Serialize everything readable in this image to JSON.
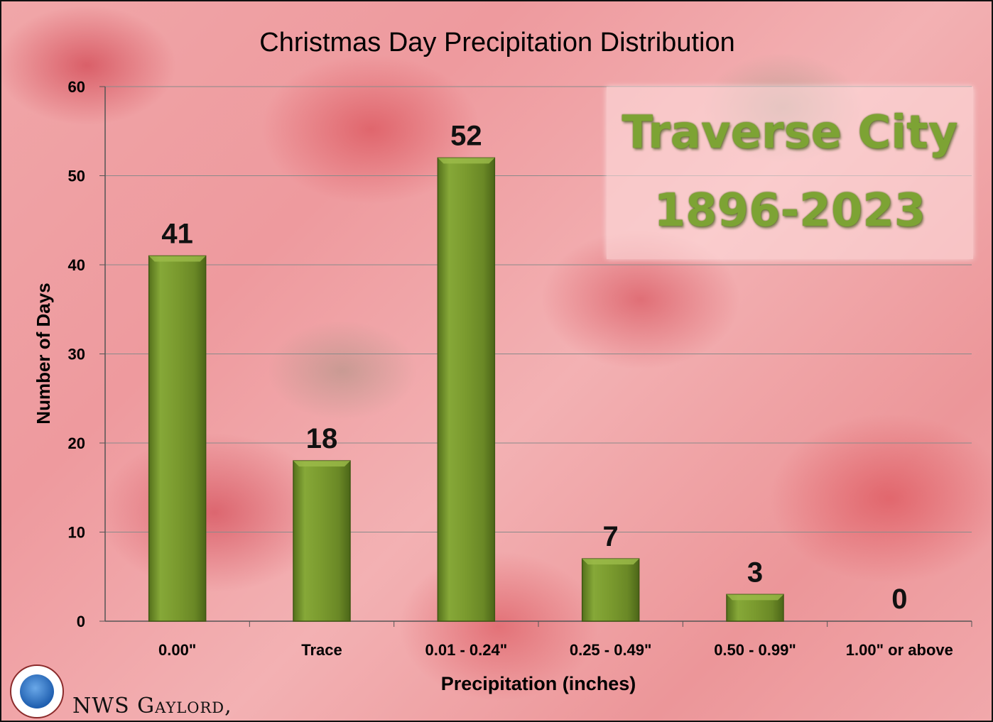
{
  "chart_data": {
    "type": "bar",
    "title": "Christmas Day Precipitation Distribution",
    "xlabel": "Precipitation (inches)",
    "ylabel": "Number of Days",
    "categories": [
      "0.00\"",
      "Trace",
      "0.01 - 0.24\"",
      "0.25 - 0.49\"",
      "0.50 - 0.99\"",
      "1.00\" or above"
    ],
    "values": [
      41,
      18,
      52,
      7,
      3,
      0
    ],
    "ylim": [
      0,
      60
    ],
    "yticks": [
      0,
      10,
      20,
      30,
      40,
      50,
      60
    ],
    "grid": true,
    "bar_color": "#7a9a2e"
  },
  "inset": {
    "line1": "Traverse City",
    "line2": "1896-2023"
  },
  "footer": {
    "credit": "NWS Gaylord,"
  }
}
